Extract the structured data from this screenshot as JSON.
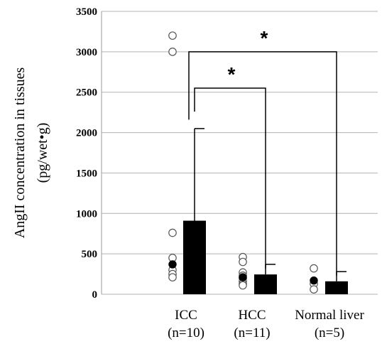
{
  "chart_data": {
    "type": "bar",
    "ylabel_line1": "AngII concentration in tissues",
    "ylabel_line2": "(pg/wet•g)",
    "ylim": [
      0,
      3500
    ],
    "yticks": [
      0,
      500,
      1000,
      1500,
      2000,
      2500,
      3000,
      3500
    ],
    "grid": true,
    "categories": [
      {
        "name": "ICC",
        "n": "(n=10)"
      },
      {
        "name": "HCC",
        "n": "(n=11)"
      },
      {
        "name": "Normal liver",
        "n": "(n=5)"
      }
    ],
    "values": [
      910,
      245,
      160
    ],
    "error_upper": [
      2050,
      370,
      280
    ],
    "points_open": [
      [
        3200,
        3000,
        760,
        450,
        300,
        250,
        210
      ],
      [
        460,
        400,
        270,
        230,
        200,
        160,
        130,
        110
      ],
      [
        320,
        130,
        60
      ]
    ],
    "points_mean": [
      370,
      210,
      170
    ],
    "significance": [
      {
        "from": 0,
        "to": 2,
        "label": "*",
        "bracket_y": 3000
      },
      {
        "from": 0,
        "to": 1,
        "label": "*",
        "bracket_y": 2550
      }
    ]
  }
}
